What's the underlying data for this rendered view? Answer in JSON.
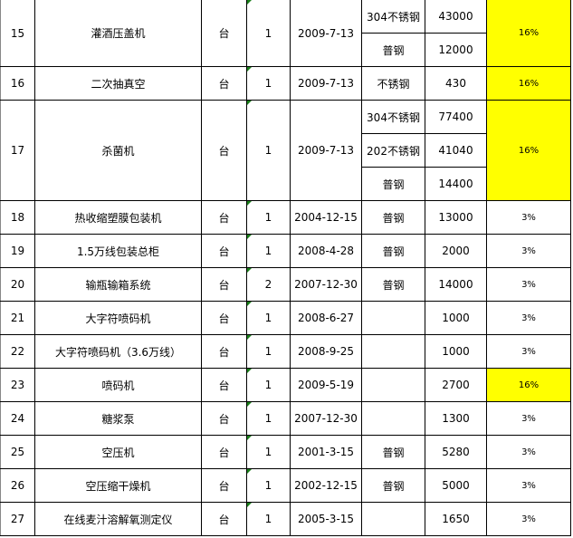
{
  "rows": [
    {
      "no": "15",
      "name": "灌酒压盖机",
      "unit": "台",
      "qty": "1",
      "date": "2009-7-13",
      "materials": [
        {
          "material": "304不锈钢",
          "value": "43000"
        },
        {
          "material": "普钢",
          "value": "12000"
        }
      ],
      "rate": "16%",
      "highlight": true
    },
    {
      "no": "16",
      "name": "二次抽真空",
      "unit": "台",
      "qty": "1",
      "date": "2009-7-13",
      "materials": [
        {
          "material": "不锈钢",
          "value": "430"
        }
      ],
      "rate": "16%",
      "highlight": true
    },
    {
      "no": "17",
      "name": "杀菌机",
      "unit": "台",
      "qty": "1",
      "date": "2009-7-13",
      "materials": [
        {
          "material": "304不锈钢",
          "value": "77400"
        },
        {
          "material": "202不锈钢",
          "value": "41040"
        },
        {
          "material": "普钢",
          "value": "14400"
        }
      ],
      "rate": "16%",
      "highlight": true
    },
    {
      "no": "18",
      "name": "热收缩塑膜包装机",
      "unit": "台",
      "qty": "1",
      "date": "2004-12-15",
      "materials": [
        {
          "material": "普钢",
          "value": "13000"
        }
      ],
      "rate": "3%",
      "highlight": false
    },
    {
      "no": "19",
      "name": "1.5万线包装总柜",
      "unit": "台",
      "qty": "1",
      "date": "2008-4-28",
      "materials": [
        {
          "material": "普钢",
          "value": "2000"
        }
      ],
      "rate": "3%",
      "highlight": false
    },
    {
      "no": "20",
      "name": "输瓶输箱系统",
      "unit": "台",
      "qty": "2",
      "date": "2007-12-30",
      "materials": [
        {
          "material": "普钢",
          "value": "14000"
        }
      ],
      "rate": "3%",
      "highlight": false
    },
    {
      "no": "21",
      "name": "大字符喷码机",
      "unit": "台",
      "qty": "1",
      "date": "2008-6-27",
      "materials": [
        {
          "material": "",
          "value": "1000"
        }
      ],
      "rate": "3%",
      "highlight": false
    },
    {
      "no": "22",
      "name": "大字符喷码机（3.6万线）",
      "unit": "台",
      "qty": "1",
      "date": "2008-9-25",
      "materials": [
        {
          "material": "",
          "value": "1000"
        }
      ],
      "rate": "3%",
      "highlight": false
    },
    {
      "no": "23",
      "name": "喷码机",
      "unit": "台",
      "qty": "1",
      "date": "2009-5-19",
      "materials": [
        {
          "material": "",
          "value": "2700"
        }
      ],
      "rate": "16%",
      "highlight": true
    },
    {
      "no": "24",
      "name": "糖浆泵",
      "unit": "台",
      "qty": "1",
      "date": "2007-12-30",
      "materials": [
        {
          "material": "",
          "value": "1300"
        }
      ],
      "rate": "3%",
      "highlight": false
    },
    {
      "no": "25",
      "name": "空压机",
      "unit": "台",
      "qty": "1",
      "date": "2001-3-15",
      "materials": [
        {
          "material": "普钢",
          "value": "5280"
        }
      ],
      "rate": "3%",
      "highlight": false
    },
    {
      "no": "26",
      "name": "空压缩干燥机",
      "unit": "台",
      "qty": "1",
      "date": "2002-12-15",
      "materials": [
        {
          "material": "普钢",
          "value": "5000"
        }
      ],
      "rate": "3%",
      "highlight": false
    },
    {
      "no": "27",
      "name": "在线麦汁溶解氧测定仪",
      "unit": "台",
      "qty": "1",
      "date": "2005-3-15",
      "materials": [
        {
          "material": "",
          "value": "1650"
        }
      ],
      "rate": "3%",
      "highlight": false
    }
  ],
  "colors": {
    "highlight": "#ffff00",
    "comment_marker": "#1a7f1a"
  }
}
